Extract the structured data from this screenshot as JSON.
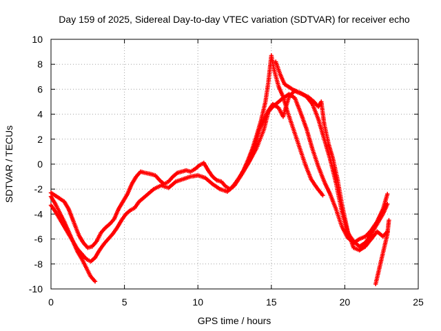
{
  "chart_data": {
    "type": "scatter",
    "title": "Day 159 of 2025, Sidereal Day-to-day VTEC variation (SDTVAR) for receiver echo",
    "xlabel": "GPS time / hours",
    "ylabel": "SDTVAR / TECUs",
    "xlim": [
      0,
      25
    ],
    "ylim": [
      -10,
      10
    ],
    "xticks": [
      0,
      5,
      10,
      15,
      20,
      25
    ],
    "yticks": [
      -10,
      -8,
      -6,
      -4,
      -2,
      0,
      2,
      4,
      6,
      8,
      10
    ],
    "grid": true,
    "marker": "+",
    "series": [
      {
        "name": "satellite-track-1",
        "color": "#ff0000",
        "points": [
          [
            0.0,
            -2.3
          ],
          [
            0.4,
            -2.6
          ],
          [
            0.9,
            -3.0
          ],
          [
            1.2,
            -3.6
          ],
          [
            1.5,
            -4.5
          ],
          [
            1.9,
            -5.7
          ],
          [
            2.2,
            -6.3
          ],
          [
            2.5,
            -6.7
          ],
          [
            2.8,
            -6.6
          ],
          [
            3.1,
            -6.2
          ],
          [
            3.4,
            -5.5
          ],
          [
            3.7,
            -5.1
          ],
          [
            4.0,
            -4.8
          ],
          [
            4.3,
            -4.4
          ],
          [
            4.6,
            -3.6
          ],
          [
            4.9,
            -3.0
          ],
          [
            5.2,
            -2.4
          ],
          [
            5.5,
            -1.6
          ],
          [
            5.8,
            -1.0
          ],
          [
            6.1,
            -0.6
          ],
          [
            6.4,
            -0.7
          ],
          [
            6.8,
            -0.8
          ],
          [
            7.1,
            -0.9
          ],
          [
            7.4,
            -1.3
          ],
          [
            7.7,
            -1.6
          ],
          [
            8.0,
            -1.4
          ],
          [
            8.3,
            -1.0
          ],
          [
            8.6,
            -0.7
          ],
          [
            8.9,
            -0.6
          ],
          [
            9.2,
            -0.5
          ],
          [
            9.5,
            -0.6
          ],
          [
            9.8,
            -0.4
          ],
          [
            10.1,
            -0.1
          ],
          [
            10.4,
            0.1
          ],
          [
            10.7,
            -0.5
          ],
          [
            11.0,
            -1.0
          ],
          [
            11.3,
            -1.3
          ],
          [
            11.6,
            -1.4
          ],
          [
            11.9,
            -1.8
          ],
          [
            12.2,
            -2.0
          ],
          [
            12.5,
            -1.6
          ],
          [
            12.8,
            -1.1
          ],
          [
            13.1,
            -0.5
          ],
          [
            13.4,
            0.3
          ],
          [
            13.7,
            1.2
          ],
          [
            14.0,
            2.3
          ],
          [
            14.3,
            3.5
          ],
          [
            14.6,
            5.0
          ],
          [
            14.8,
            6.6
          ],
          [
            15.0,
            8.7
          ],
          [
            15.2,
            7.5
          ],
          [
            15.5,
            6.2
          ],
          [
            15.8,
            5.4
          ],
          [
            16.1,
            4.2
          ],
          [
            16.5,
            2.8
          ],
          [
            16.9,
            1.4
          ],
          [
            17.3,
            0.0
          ],
          [
            17.7,
            -1.2
          ],
          [
            18.1,
            -1.9
          ],
          [
            18.5,
            -2.5
          ]
        ]
      },
      {
        "name": "satellite-track-2",
        "color": "#ff0000",
        "points": [
          [
            0.0,
            -3.3
          ],
          [
            0.3,
            -3.8
          ],
          [
            0.6,
            -4.4
          ],
          [
            0.9,
            -5.0
          ],
          [
            1.2,
            -5.6
          ],
          [
            1.5,
            -6.2
          ],
          [
            1.8,
            -6.8
          ],
          [
            2.1,
            -7.2
          ],
          [
            2.4,
            -7.6
          ],
          [
            2.7,
            -7.8
          ],
          [
            3.0,
            -7.5
          ],
          [
            3.3,
            -6.9
          ],
          [
            3.6,
            -6.4
          ],
          [
            3.9,
            -6.0
          ],
          [
            4.2,
            -5.6
          ],
          [
            4.5,
            -5.1
          ],
          [
            4.8,
            -4.5
          ],
          [
            5.1,
            -4.0
          ],
          [
            5.4,
            -3.7
          ],
          [
            5.7,
            -3.5
          ],
          [
            6.0,
            -3.0
          ],
          [
            6.5,
            -2.5
          ],
          [
            7.0,
            -2.0
          ],
          [
            7.5,
            -1.7
          ],
          [
            8.0,
            -1.9
          ],
          [
            8.5,
            -1.4
          ],
          [
            9.0,
            -1.2
          ],
          [
            9.5,
            -1.0
          ],
          [
            10.0,
            -0.9
          ],
          [
            10.5,
            -1.1
          ],
          [
            11.0,
            -1.6
          ],
          [
            11.5,
            -2.0
          ],
          [
            12.0,
            -2.2
          ],
          [
            12.5,
            -1.7
          ],
          [
            13.0,
            -0.8
          ],
          [
            13.5,
            0.2
          ],
          [
            14.0,
            1.3
          ],
          [
            14.5,
            2.8
          ],
          [
            14.8,
            4.2
          ],
          [
            15.1,
            4.6
          ],
          [
            15.4,
            4.9
          ],
          [
            15.8,
            5.3
          ],
          [
            16.2,
            5.6
          ],
          [
            16.6,
            5.3
          ],
          [
            17.0,
            4.1
          ],
          [
            17.4,
            2.8
          ],
          [
            17.8,
            1.2
          ],
          [
            18.2,
            -0.2
          ],
          [
            18.6,
            -1.4
          ],
          [
            19.0,
            -2.4
          ],
          [
            19.4,
            -3.6
          ],
          [
            19.8,
            -5.0
          ],
          [
            20.2,
            -5.9
          ],
          [
            20.6,
            -6.3
          ],
          [
            21.0,
            -6.0
          ],
          [
            21.4,
            -5.8
          ],
          [
            21.8,
            -5.3
          ],
          [
            22.2,
            -4.6
          ],
          [
            22.6,
            -3.6
          ],
          [
            22.9,
            -2.4
          ]
        ]
      },
      {
        "name": "satellite-track-3",
        "color": "#ff0000",
        "points": [
          [
            0.0,
            -2.6
          ],
          [
            0.3,
            -3.2
          ],
          [
            0.6,
            -3.9
          ],
          [
            0.9,
            -4.6
          ],
          [
            1.2,
            -5.4
          ],
          [
            1.5,
            -6.2
          ],
          [
            1.8,
            -7.0
          ],
          [
            2.1,
            -7.6
          ],
          [
            2.4,
            -8.3
          ],
          [
            2.7,
            -9.0
          ],
          [
            3.0,
            -9.4
          ]
        ]
      },
      {
        "name": "satellite-track-4",
        "color": "#ff0000",
        "points": [
          [
            13.6,
            0.6
          ],
          [
            13.9,
            1.6
          ],
          [
            14.2,
            2.8
          ],
          [
            14.5,
            3.6
          ],
          [
            14.8,
            4.3
          ],
          [
            15.1,
            4.8
          ],
          [
            15.5,
            4.5
          ],
          [
            15.8,
            3.8
          ],
          [
            16.2,
            5.4
          ],
          [
            16.6,
            5.9
          ],
          [
            17.0,
            5.7
          ],
          [
            17.4,
            5.4
          ],
          [
            17.8,
            4.8
          ],
          [
            18.2,
            3.6
          ],
          [
            18.6,
            2.0
          ],
          [
            19.0,
            0.4
          ],
          [
            19.4,
            -1.5
          ],
          [
            19.8,
            -3.8
          ],
          [
            20.2,
            -5.5
          ],
          [
            20.6,
            -6.2
          ],
          [
            21.0,
            -6.6
          ],
          [
            21.4,
            -6.3
          ],
          [
            21.8,
            -5.6
          ],
          [
            22.2,
            -4.8
          ],
          [
            22.6,
            -4.0
          ],
          [
            22.9,
            -3.2
          ]
        ]
      },
      {
        "name": "satellite-track-5",
        "color": "#ff0000",
        "points": [
          [
            15.3,
            8.2
          ],
          [
            15.6,
            7.2
          ],
          [
            15.9,
            6.4
          ],
          [
            16.3,
            6.1
          ],
          [
            16.7,
            5.8
          ],
          [
            17.1,
            5.6
          ],
          [
            17.5,
            5.4
          ],
          [
            17.9,
            5.0
          ],
          [
            18.2,
            4.6
          ],
          [
            18.4,
            5.0
          ],
          [
            18.6,
            3.2
          ],
          [
            18.9,
            1.6
          ],
          [
            19.2,
            0.4
          ],
          [
            19.5,
            -1.2
          ],
          [
            19.8,
            -3.2
          ],
          [
            20.2,
            -5.4
          ],
          [
            20.6,
            -6.7
          ],
          [
            21.0,
            -6.9
          ],
          [
            21.4,
            -6.6
          ],
          [
            21.8,
            -6.0
          ],
          [
            22.2,
            -5.4
          ],
          [
            22.6,
            -5.8
          ],
          [
            22.9,
            -5.4
          ]
        ]
      },
      {
        "name": "satellite-track-6",
        "color": "#ff0000",
        "points": [
          [
            22.1,
            -9.6
          ],
          [
            22.3,
            -8.6
          ],
          [
            22.5,
            -7.6
          ],
          [
            22.7,
            -6.6
          ],
          [
            22.9,
            -5.6
          ],
          [
            23.0,
            -4.5
          ]
        ]
      }
    ]
  }
}
